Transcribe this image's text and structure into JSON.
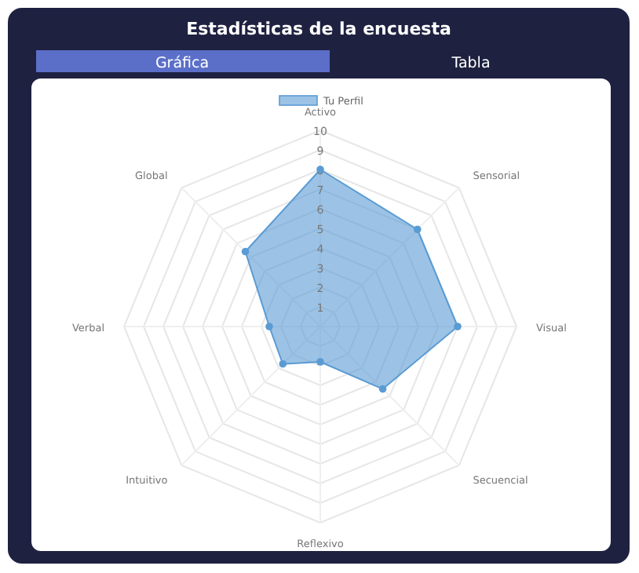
{
  "chart_data": {
    "type": "radar",
    "title": "Estadísticas de la encuesta",
    "annotations": [
      "Gráfica",
      "Tabla"
    ],
    "categories": [
      "Activo",
      "Sensorial",
      "Visual",
      "Secuencial",
      "Reflexivo",
      "Intuitivo",
      "Verbal",
      "Global"
    ],
    "series": [
      {
        "name": "Tu Perfil",
        "color": "#5a9bd4",
        "values": [
          8,
          7,
          7,
          4.5,
          1.8,
          2.7,
          2.6,
          5.4
        ]
      }
    ],
    "ylim": [
      0,
      10
    ],
    "yticks": [
      1,
      2,
      3,
      4,
      5,
      6,
      7,
      8,
      9,
      10
    ],
    "legend": "top",
    "grid": true,
    "marker": "circle"
  }
}
